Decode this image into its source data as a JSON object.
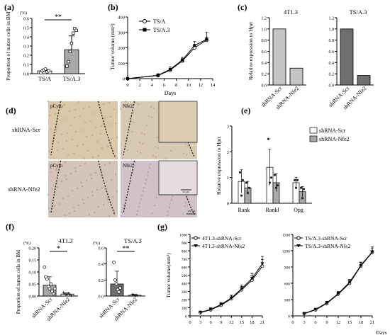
{
  "chart_data": [
    {
      "panel": "(a)",
      "type": "scatter-bar",
      "ylabel": "Proportion of tumor cells in BM",
      "unit": "(%)",
      "ylim": [
        0,
        0.6
      ],
      "yticks": [
        "0.0",
        "0.1",
        "0.2",
        "0.3",
        "0.4",
        "0.5",
        "0.6"
      ],
      "categories": [
        "TS/A",
        "TS/A.3"
      ],
      "bar_values": [
        0.03,
        0.26
      ],
      "errors": [
        0.015,
        0.15
      ],
      "points": [
        [
          0.01,
          0.03,
          0.04,
          0.05,
          0.02,
          0.03
        ],
        [
          0.08,
          0.13,
          0.24,
          0.33,
          0.44,
          0.49,
          0.47
        ]
      ],
      "significance": "**",
      "colors": [
        "#ffffff",
        "#a8a8a8"
      ]
    },
    {
      "panel": "(b)",
      "type": "line",
      "ylabel": "Tumor volume (mm³)",
      "xlabel": "Days",
      "xlim": [
        0,
        14
      ],
      "ylim": [
        0,
        400
      ],
      "xticks": [
        "0",
        "2",
        "4",
        "6",
        "8",
        "10",
        "12",
        "14"
      ],
      "yticks": [
        "0",
        "100",
        "200",
        "300",
        "400"
      ],
      "x": [
        0,
        5,
        7,
        9,
        11,
        13
      ],
      "series": [
        {
          "name": "TS/A",
          "values": [
            0,
            20,
            55,
            115,
            200,
            250
          ],
          "errors": [
            0,
            8,
            12,
            15,
            18,
            20
          ]
        },
        {
          "name": "TS/A.3",
          "values": [
            0,
            22,
            60,
            120,
            215,
            255
          ],
          "errors": [
            0,
            10,
            15,
            18,
            25,
            45
          ]
        }
      ]
    },
    {
      "panel": "(c)",
      "type": "bar",
      "ylabel": "Relative expression to Hprt",
      "ylim": [
        0,
        1.2
      ],
      "yticks": [
        "0.0",
        "0.2",
        "0.4",
        "0.6",
        "0.8",
        "1.0",
        "1.2"
      ],
      "subplots": [
        {
          "title": "4T1.3",
          "categories": [
            "shRNA-Scr",
            "shRNA-Nfe2"
          ],
          "values": [
            1.0,
            0.3
          ],
          "color": "#c4c4c4"
        },
        {
          "title": "TS/A.3",
          "categories": [
            "shRNA-Scr",
            "shRNA-Nfe2"
          ],
          "values": [
            1.0,
            0.17
          ],
          "color": "#6e6e6e"
        }
      ]
    },
    {
      "panel": "(e)",
      "type": "bar",
      "ylabel": "Relative expression to Hprt",
      "ylim": [
        0,
        3
      ],
      "yticks": [
        "0",
        "1",
        "2",
        "3"
      ],
      "categories": [
        "Rank",
        "Rankl",
        "Opg"
      ],
      "series": [
        {
          "name": "shRNA-Scr",
          "values": [
            0.85,
            1.4,
            0.8
          ],
          "errors": [
            0.45,
            0.7,
            0.2
          ],
          "points": [
            [
              1.2,
              0.3,
              0.9
            ],
            [
              2.5,
              0.8,
              1.0
            ],
            [
              0.9,
              0.6,
              0.9
            ]
          ],
          "color": "#ffffff"
        },
        {
          "name": "shRNA-Nfe2",
          "values": [
            0.6,
            0.8,
            0.45
          ],
          "errors": [
            0.25,
            0.35,
            0.2
          ],
          "points": [
            [
              0.8,
              0.4,
              0.6
            ],
            [
              1.1,
              0.6,
              0.7
            ],
            [
              0.6,
              0.2,
              0.55
            ]
          ],
          "color": "#a8a8a8"
        }
      ]
    },
    {
      "panel": "(f)",
      "type": "scatter-bar",
      "ylabel": "Proportion of tumor cells in BM",
      "unit": "(%)",
      "subplots": [
        {
          "title": "4T1.3",
          "ylim": [
            0,
            0.2
          ],
          "yticks": [
            "0.00",
            "0.05",
            "0.10",
            "0.15",
            "0.20"
          ],
          "categories": [
            "shRNA-Scr",
            "shRNA-Nfe2"
          ],
          "bar_values": [
            0.045,
            0.008
          ],
          "errors": [
            0.035,
            0.005
          ],
          "points": [
            [
              0.12,
              0.08,
              0.07,
              0.04,
              0.03,
              0.05,
              0.02,
              0.01,
              0.03
            ],
            [
              0.015,
              0.01,
              0.005,
              0.008,
              0.012,
              0.006,
              0.002
            ]
          ],
          "significance": "*",
          "color": "#a8a8a8"
        },
        {
          "title": "TS/A.3",
          "ylim": [
            0,
            0.6
          ],
          "yticks": [
            "0.0",
            "0.2",
            "0.4",
            "0.6"
          ],
          "categories": [
            "shRNA-Scr",
            "shRNA-Nfe2"
          ],
          "bar_values": [
            0.15,
            0.01
          ],
          "errors": [
            0.16,
            0.01
          ],
          "points": [
            [
              0.42,
              0.2,
              0.15,
              0.08,
              0.05,
              0.1
            ],
            [
              0.02,
              0.015,
              0.01,
              0.005,
              0.01
            ]
          ],
          "significance": "**",
          "color": "#6e6e6e"
        }
      ]
    },
    {
      "panel": "(g)",
      "type": "line",
      "ylabel": "Tumor volume(mm³)",
      "xlabel": "Days",
      "subplots": [
        {
          "ylim": [
            0,
            1000
          ],
          "yticks": [
            "0",
            "100",
            "200",
            "300",
            "400",
            "500",
            "600",
            "700",
            "800",
            "900",
            "1000"
          ],
          "xticks": [
            "0",
            "3",
            "6",
            "9",
            "12",
            "15",
            "18",
            "21"
          ],
          "x": [
            3,
            6,
            9,
            12,
            15,
            18,
            21
          ],
          "series": [
            {
              "name": "4T1.3-shRNA-Scr",
              "values": [
                40,
                75,
                130,
                210,
                320,
                440,
                610
              ],
              "errors": [
                15,
                20,
                25,
                35,
                40,
                50,
                80
              ]
            },
            {
              "name": "4T1.3-shRNA-Nfe2",
              "values": [
                45,
                80,
                140,
                220,
                335,
                460,
                640
              ],
              "errors": [
                15,
                20,
                25,
                35,
                45,
                60,
                90
              ]
            }
          ]
        },
        {
          "ylim": [
            0,
            1500
          ],
          "yticks": [
            "0",
            "300",
            "600",
            "900",
            "1200",
            "1500"
          ],
          "xticks": [
            "0",
            "3",
            "6",
            "9",
            "12",
            "15",
            "18",
            "21"
          ],
          "x": [
            3,
            6,
            9,
            12,
            15,
            18,
            21
          ],
          "series": [
            {
              "name": "TS/A.3-shRNA-Scr",
              "values": [
                40,
                110,
                230,
                400,
                600,
                920,
                1170
              ],
              "errors": [
                10,
                20,
                30,
                40,
                50,
                60,
                80
              ]
            },
            {
              "name": "TS/A.3-shRNA-Nfe2",
              "values": [
                45,
                120,
                240,
                410,
                620,
                930,
                1180
              ],
              "errors": [
                10,
                20,
                30,
                40,
                50,
                60,
                90
              ]
            }
          ]
        }
      ]
    }
  ],
  "micrograph": {
    "panel": "(d)",
    "rows": [
      "shRNA-Scr",
      "shRNA-Nfe2"
    ],
    "stains": [
      "pCyto",
      "Nfe2"
    ],
    "scale_label": "100 μm",
    "inset_scale_label": "50 μm"
  },
  "panel_labels": [
    "(a)",
    "(b)",
    "(c)",
    "(d)",
    "(e)",
    "(f)",
    "(g)"
  ]
}
